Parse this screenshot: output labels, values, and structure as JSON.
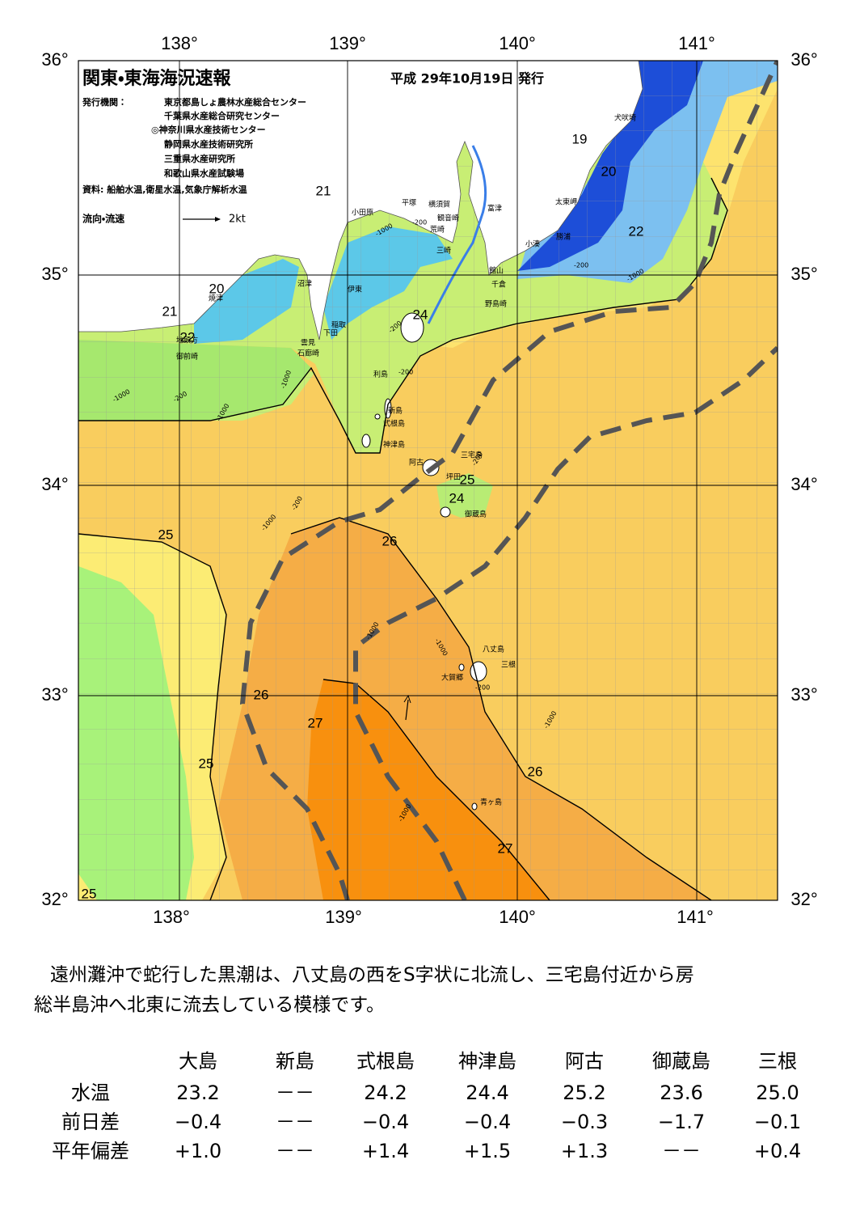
{
  "header": {
    "title": "関東・東海海況速報",
    "date": "平成 29年10月19日 発行",
    "issuer_label": "発行機関：",
    "issuers": [
      "東京都島しょ農林水産総合センター",
      "千葉県水産総合研究センター",
      "◎神奈川県水産技術センター",
      "静岡県水産技術研究所",
      "三重県水産研究所",
      "和歌山県水産試験場"
    ],
    "source": "資料: 船舶水温,衛星水温,気象庁解析水温",
    "legend_label": "流向・流速",
    "legend_speed": "2kt"
  },
  "axes": {
    "longitude": [
      "138°",
      "139°",
      "140°",
      "141°"
    ],
    "latitude": [
      "36°",
      "35°",
      "34°",
      "33°",
      "32°"
    ]
  },
  "places": [
    "犬吠埼",
    "太東岬",
    "勝浦",
    "小湊",
    "富津",
    "館山",
    "千倉",
    "野島崎",
    "横須賀",
    "観音崎",
    "平塚",
    "荒崎",
    "三崎",
    "小田原",
    "沼津",
    "伊東",
    "焼津",
    "稲取",
    "下田",
    "雲見",
    "石廊崎",
    "御前崎",
    "地頭方",
    "利島",
    "新島",
    "式根島",
    "神津島",
    "阿古",
    "三宅島",
    "坪田",
    "御蔵島",
    "八丈島",
    "三根",
    "大賀郷",
    "青ヶ島"
  ],
  "temperature_labels": [
    "19",
    "20",
    "22",
    "21",
    "20",
    "21",
    "22",
    "24",
    "25",
    "24",
    "25",
    "26",
    "26",
    "27",
    "25",
    "26",
    "27",
    "25"
  ],
  "depth_labels": [
    "-200",
    "-1000",
    "-200",
    "-1000",
    "-200",
    "-200",
    "-1000",
    "-1000",
    "-200",
    "-1000",
    "-1000",
    "-200",
    "-1000",
    "-1000",
    "-1000",
    "-200",
    "-200",
    "-1000"
  ],
  "description": [
    "遠州灘沖で蛇行した黒潮は、八丈島の西をS字状に北流し、三宅島付近から房",
    "総半島沖へ北東に流去している模様です。"
  ],
  "table": {
    "columns": [
      "大島",
      "新島",
      "式根島",
      "神津島",
      "阿古",
      "御蔵島",
      "三根"
    ],
    "rows": [
      {
        "label": "水温",
        "values": [
          "23.2",
          "－－",
          "24.2",
          "24.4",
          "25.2",
          "23.6",
          "25.0"
        ]
      },
      {
        "label": "前日差",
        "values": [
          "−0.4",
          "－－",
          "−0.4",
          "−0.4",
          "−0.3",
          "−1.7",
          "−0.1"
        ]
      },
      {
        "label": "平年偏差",
        "values": [
          "+1.0",
          "－－",
          "+1.4",
          "+1.5",
          "+1.3",
          "－－",
          "+0.4"
        ]
      }
    ]
  }
}
